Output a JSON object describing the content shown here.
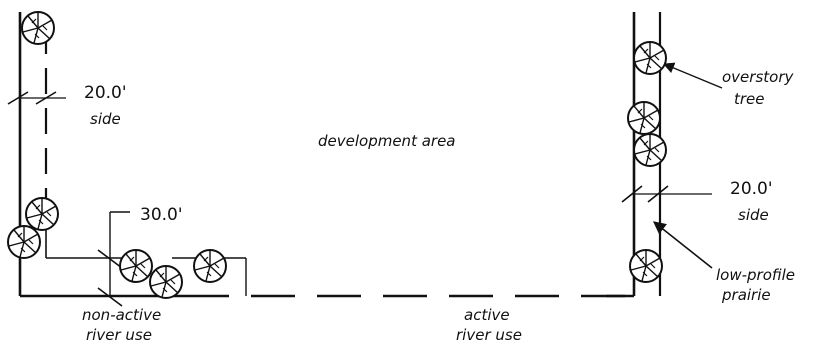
{
  "labels": {
    "development_area": "development area",
    "left_side_dim": "20.0'",
    "left_side_word": "side",
    "front_dim": "30.0'",
    "right_side_dim": "20.0'",
    "right_side_word": "side",
    "overstory_line1": "overstory",
    "overstory_line2": "tree",
    "lowprofile_line1": "low-profile",
    "lowprofile_line2": "prairie",
    "nonactive_line1": "non-active",
    "nonactive_line2": "river use",
    "active_line1": "active",
    "active_line2": "river use"
  },
  "colors": {
    "ink": "#111111",
    "background": "#ffffff"
  },
  "icons": [
    "tree-symbol-icon",
    "dimension-tick-icon",
    "leader-arrow-icon"
  ]
}
